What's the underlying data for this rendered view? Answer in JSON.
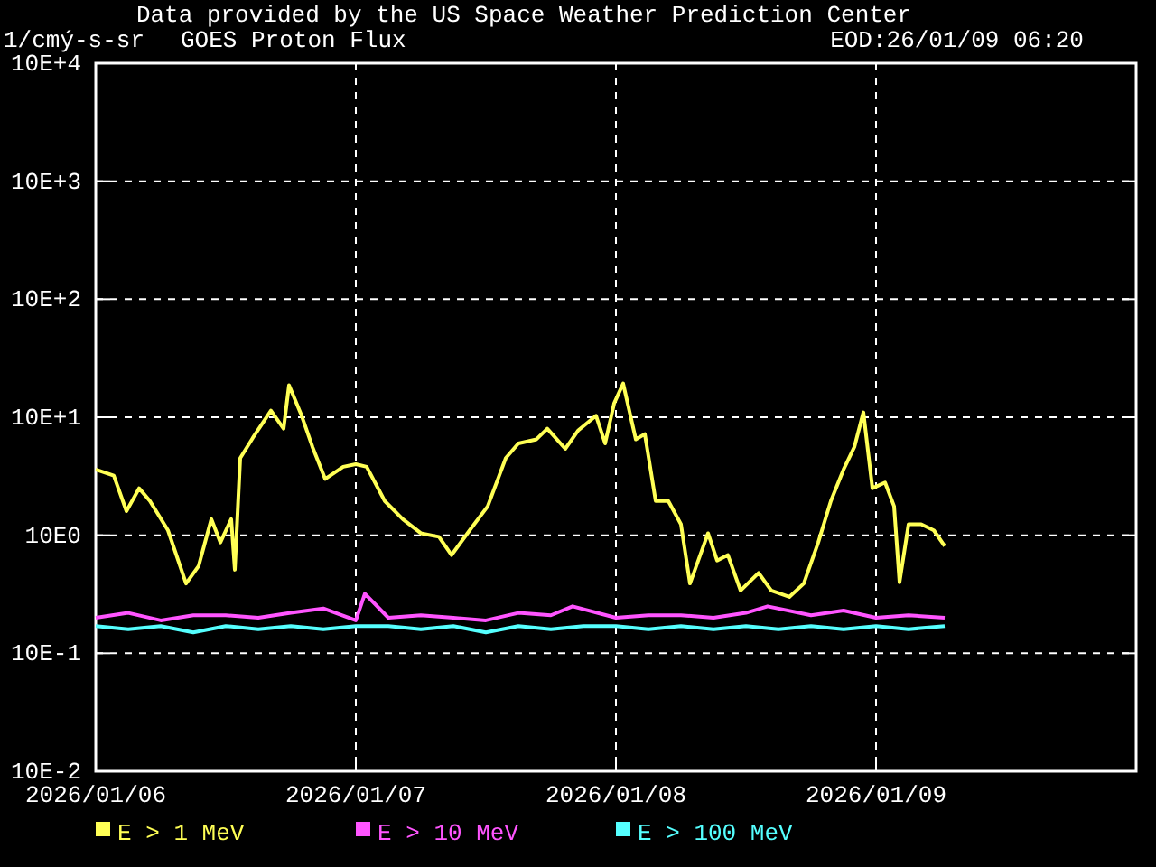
{
  "chart_data": {
    "type": "line",
    "title": "GOES Proton Flux",
    "ylabel": "1/cmý-s-sr",
    "annotations": [
      "Data provided by the US Space Weather Prediction Center",
      "EOD:26/01/09 06:20"
    ],
    "log": "y",
    "grid": true,
    "legend": "bottom",
    "line_style": "solid",
    "marker": "none",
    "xlim": [
      "2026-01-06T00:00",
      "2026-01-10T00:00"
    ],
    "xticks": [
      {
        "value": "2026-01-06T00:00",
        "label": "2026/01/06"
      },
      {
        "value": "2026-01-07T00:00",
        "label": "2026/01/07"
      },
      {
        "value": "2026-01-08T00:00",
        "label": "2026/01/08"
      },
      {
        "value": "2026-01-09T00:00",
        "label": "2026/01/09"
      }
    ],
    "ylim": [
      0.1,
      100000
    ],
    "yticks": [
      {
        "value": 0.1,
        "label": "10E-2"
      },
      {
        "value": 1,
        "label": "10E-1"
      },
      {
        "value": 10,
        "label": "10E0"
      },
      {
        "value": 100,
        "label": "10E+1"
      },
      {
        "value": 1000,
        "label": "10E+2"
      },
      {
        "value": 10000,
        "label": "10E+3"
      },
      {
        "value": 100000,
        "label": "10E+4"
      }
    ],
    "series": [
      {
        "name": "E > 10 MeV",
        "color": "#ff55ff",
        "x": [
          "2026-01-06T00:00",
          "2026-01-06T03:00",
          "2026-01-06T06:00",
          "2026-01-06T09:00",
          "2026-01-06T12:00",
          "2026-01-06T15:00",
          "2026-01-06T18:00",
          "2026-01-06T21:00",
          "2026-01-07T00:00",
          "2026-01-07T00:50",
          "2026-01-07T03:00",
          "2026-01-07T06:00",
          "2026-01-07T09:00",
          "2026-01-07T12:00",
          "2026-01-07T15:00",
          "2026-01-07T18:00",
          "2026-01-07T20:00",
          "2026-01-08T00:00",
          "2026-01-08T03:00",
          "2026-01-08T06:00",
          "2026-01-08T09:00",
          "2026-01-08T12:00",
          "2026-01-08T14:00",
          "2026-01-08T18:00",
          "2026-01-08T21:00",
          "2026-01-09T00:00",
          "2026-01-09T03:00",
          "2026-01-09T06:20"
        ],
        "values": [
          2.0,
          2.2,
          1.9,
          2.1,
          2.1,
          2.0,
          2.2,
          2.4,
          1.9,
          3.2,
          2.0,
          2.1,
          2.0,
          1.9,
          2.2,
          2.1,
          2.5,
          2.0,
          2.1,
          2.1,
          2.0,
          2.2,
          2.5,
          2.1,
          2.3,
          2.0,
          2.1,
          2.0
        ]
      },
      {
        "name": "E > 100 MeV",
        "color": "#55ffff",
        "x": [
          "2026-01-06T00:00",
          "2026-01-06T03:00",
          "2026-01-06T06:00",
          "2026-01-06T09:00",
          "2026-01-06T12:00",
          "2026-01-06T15:00",
          "2026-01-06T18:00",
          "2026-01-06T21:00",
          "2026-01-07T00:00",
          "2026-01-07T03:00",
          "2026-01-07T06:00",
          "2026-01-07T09:00",
          "2026-01-07T12:00",
          "2026-01-07T15:00",
          "2026-01-07T18:00",
          "2026-01-07T21:00",
          "2026-01-08T00:00",
          "2026-01-08T03:00",
          "2026-01-08T06:00",
          "2026-01-08T09:00",
          "2026-01-08T12:00",
          "2026-01-08T15:00",
          "2026-01-08T18:00",
          "2026-01-08T21:00",
          "2026-01-09T00:00",
          "2026-01-09T03:00",
          "2026-01-09T06:20"
        ],
        "values": [
          1.7,
          1.6,
          1.7,
          1.5,
          1.7,
          1.6,
          1.7,
          1.6,
          1.7,
          1.7,
          1.6,
          1.7,
          1.5,
          1.7,
          1.6,
          1.7,
          1.7,
          1.6,
          1.7,
          1.6,
          1.7,
          1.6,
          1.7,
          1.6,
          1.7,
          1.6,
          1.7
        ]
      },
      {
        "name": "E > 1 MeV",
        "color": "#ffff55",
        "x": [
          "2026-01-06T00:00",
          "2026-01-06T01:40",
          "2026-01-06T02:50",
          "2026-01-06T04:00",
          "2026-01-06T05:00",
          "2026-01-06T06:40",
          "2026-01-06T08:20",
          "2026-01-06T09:30",
          "2026-01-06T10:40",
          "2026-01-06T11:30",
          "2026-01-06T12:30",
          "2026-01-06T12:50",
          "2026-01-06T13:20",
          "2026-01-06T14:30",
          "2026-01-06T16:10",
          "2026-01-06T17:20",
          "2026-01-06T17:50",
          "2026-01-06T19:00",
          "2026-01-06T20:00",
          "2026-01-06T21:10",
          "2026-01-06T22:50",
          "2026-01-07T00:00",
          "2026-01-07T01:00",
          "2026-01-07T02:40",
          "2026-01-07T04:20",
          "2026-01-07T06:00",
          "2026-01-07T07:40",
          "2026-01-07T08:50",
          "2026-01-07T10:30",
          "2026-01-07T12:10",
          "2026-01-07T13:50",
          "2026-01-07T15:00",
          "2026-01-07T16:40",
          "2026-01-07T17:40",
          "2026-01-07T19:20",
          "2026-01-07T20:30",
          "2026-01-07T22:10",
          "2026-01-07T23:00",
          "2026-01-07T23:50",
          "2026-01-08T00:40",
          "2026-01-08T01:50",
          "2026-01-08T02:40",
          "2026-01-08T03:40",
          "2026-01-08T04:50",
          "2026-01-08T06:00",
          "2026-01-08T06:50",
          "2026-01-08T08:30",
          "2026-01-08T09:20",
          "2026-01-08T10:20",
          "2026-01-08T11:30",
          "2026-01-08T13:10",
          "2026-01-08T14:20",
          "2026-01-08T16:00",
          "2026-01-08T17:20",
          "2026-01-08T18:40",
          "2026-01-08T19:50",
          "2026-01-08T21:00",
          "2026-01-08T22:00",
          "2026-01-08T22:50",
          "2026-01-08T23:40",
          "2026-01-09T00:50",
          "2026-01-09T01:40",
          "2026-01-09T02:10",
          "2026-01-09T03:00",
          "2026-01-09T04:10",
          "2026-01-09T05:20",
          "2026-01-09T06:20"
        ],
        "values": [
          36,
          32,
          16,
          25,
          19.5,
          11,
          3.9,
          5.5,
          13.7,
          8.7,
          13.7,
          5.1,
          45,
          67,
          114,
          80,
          187,
          103,
          56,
          30,
          38,
          40,
          38,
          19.5,
          13.7,
          10.4,
          9.7,
          6.8,
          11,
          17.6,
          45,
          60,
          65,
          80,
          54,
          77,
          103,
          60,
          131,
          193,
          65,
          72,
          19.5,
          19.5,
          12.4,
          3.9,
          10.4,
          6.1,
          6.8,
          3.4,
          4.8,
          3.4,
          3.0,
          3.9,
          8.7,
          19.5,
          36,
          56,
          110,
          25,
          28,
          17.6,
          4.0,
          12.4,
          12.4,
          11,
          8.1
        ]
      }
    ]
  }
}
